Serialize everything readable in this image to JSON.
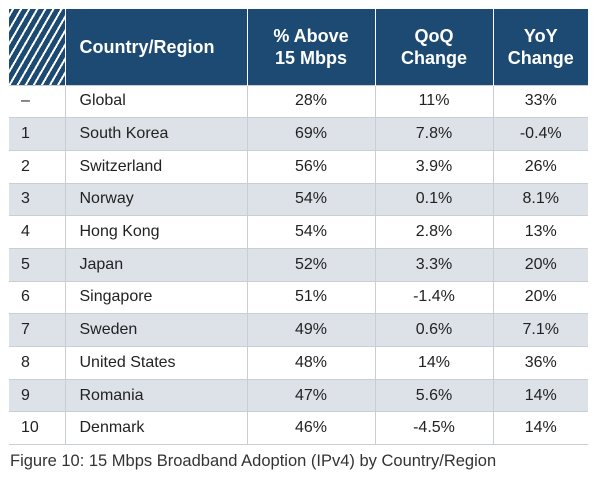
{
  "table": {
    "headers": {
      "country": "Country/Region",
      "above": "% Above 15 Mbps",
      "qoq": "QoQ Change",
      "yoy": "YoY Change"
    },
    "rows": [
      {
        "rank": "–",
        "country": "Global",
        "above": "28%",
        "qoq": "11%",
        "yoy": "33%"
      },
      {
        "rank": "1",
        "country": "South Korea",
        "above": "69%",
        "qoq": "7.8%",
        "yoy": "-0.4%"
      },
      {
        "rank": "2",
        "country": "Switzerland",
        "above": "56%",
        "qoq": "3.9%",
        "yoy": "26%"
      },
      {
        "rank": "3",
        "country": "Norway",
        "above": "54%",
        "qoq": "0.1%",
        "yoy": "8.1%"
      },
      {
        "rank": "4",
        "country": "Hong Kong",
        "above": "54%",
        "qoq": "2.8%",
        "yoy": "13%"
      },
      {
        "rank": "5",
        "country": "Japan",
        "above": "52%",
        "qoq": "3.3%",
        "yoy": "20%"
      },
      {
        "rank": "6",
        "country": "Singapore",
        "above": "51%",
        "qoq": "-1.4%",
        "yoy": "20%"
      },
      {
        "rank": "7",
        "country": "Sweden",
        "above": "49%",
        "qoq": "0.6%",
        "yoy": "7.1%"
      },
      {
        "rank": "8",
        "country": "United States",
        "above": "48%",
        "qoq": "14%",
        "yoy": "36%"
      },
      {
        "rank": "9",
        "country": "Romania",
        "above": "47%",
        "qoq": "5.6%",
        "yoy": "14%"
      },
      {
        "rank": "10",
        "country": "Denmark",
        "above": "46%",
        "qoq": "-4.5%",
        "yoy": "14%"
      }
    ]
  },
  "caption": "Figure 10: 15 Mbps Broadband Adoption (IPv4) by Country/Region",
  "colors": {
    "header_bg": "#1d4a72",
    "header_text": "#ffffff",
    "row_alt_bg": "#dde2e8",
    "row_bg": "#ffffff"
  }
}
